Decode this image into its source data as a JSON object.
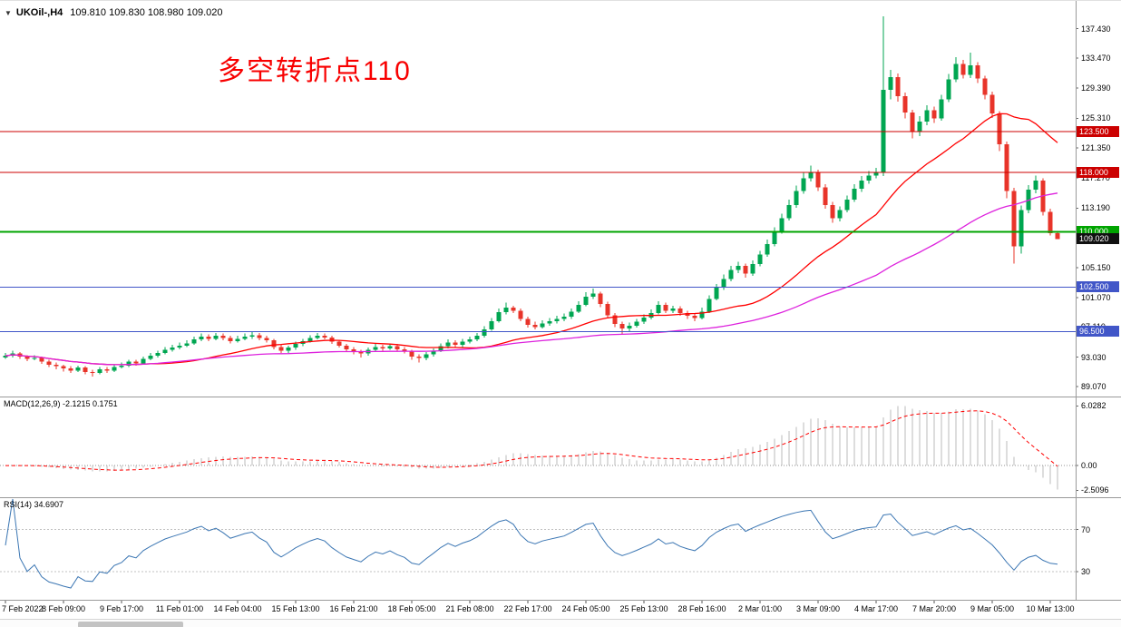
{
  "header": {
    "dropdown_icon": "▼",
    "symbol": "UKOil-,H4",
    "ohlc": "109.810 109.830 108.980 109.020"
  },
  "annotation": {
    "text": "多空转折点110",
    "color": "#F80000"
  },
  "chart_data": [
    {
      "type": "candlestick",
      "title": "UKOil- H4 candlestick chart",
      "symbol": "UKOil-",
      "timeframe": "H4",
      "ohlc_current": {
        "open": 109.81,
        "high": 109.83,
        "low": 108.98,
        "close": 109.02
      },
      "ylim": [
        87.7,
        141.2
      ],
      "grid": false,
      "up_color": "#00A651",
      "down_color": "#E8342A",
      "y_tick_labels": [
        "137.430",
        "133.470",
        "129.390",
        "125.310",
        "121.350",
        "117.270",
        "113.190",
        "109.110",
        "105.150",
        "101.070",
        "97.110",
        "93.030",
        "89.070"
      ],
      "x_labels": [
        "7 Feb 2022",
        "8 Feb 09:00",
        "9 Feb 17:00",
        "11 Feb 01:00",
        "14 Feb 04:00",
        "15 Feb 13:00",
        "16 Feb 21:00",
        "18 Feb 05:00",
        "21 Feb 08:00",
        "22 Feb 17:00",
        "24 Feb 05:00",
        "25 Feb 13:00",
        "28 Feb 16:00",
        "2 Mar 01:00",
        "3 Mar 09:00",
        "4 Mar 17:00",
        "7 Mar 20:00",
        "9 Mar 05:00",
        "10 Mar 13:00"
      ],
      "moving_averages": [
        {
          "name": "MA-red",
          "period": 21,
          "color": "#FF0000"
        },
        {
          "name": "MA-magenta",
          "period": 55,
          "color": "#DD22DD"
        }
      ],
      "levels": [
        {
          "price": 123.5,
          "label": "123.500",
          "color": "#CC0000",
          "width": 1
        },
        {
          "price": 118.0,
          "label": "118.000",
          "color": "#CC0000",
          "width": 1
        },
        {
          "price": 110.0,
          "label": "110.000",
          "color": "#00A400",
          "width": 2
        },
        {
          "price": 102.5,
          "label": "102.500",
          "color": "#4156C8",
          "width": 1
        },
        {
          "price": 96.5,
          "label": "96.500",
          "color": "#4156C8",
          "width": 1
        }
      ],
      "current_price": {
        "value": 109.02,
        "label": "109.020",
        "badge_color": "#111111"
      },
      "candles": [
        [
          93.0,
          93.6,
          92.8,
          93.2
        ],
        [
          93.2,
          93.9,
          93.0,
          93.5
        ],
        [
          93.5,
          93.7,
          92.8,
          93.1
        ],
        [
          93.1,
          93.3,
          92.5,
          92.8
        ],
        [
          92.8,
          93.3,
          92.6,
          92.9
        ],
        [
          92.9,
          93.1,
          92.1,
          92.4
        ],
        [
          92.4,
          92.7,
          91.7,
          92.0
        ],
        [
          92.0,
          92.3,
          91.4,
          91.8
        ],
        [
          91.8,
          92.0,
          91.1,
          91.5
        ],
        [
          91.5,
          91.8,
          90.9,
          91.2
        ],
        [
          91.2,
          91.9,
          91.0,
          91.6
        ],
        [
          91.6,
          91.8,
          90.7,
          91.0
        ],
        [
          91.0,
          91.3,
          90.4,
          90.9
        ],
        [
          90.9,
          91.7,
          90.7,
          91.4
        ],
        [
          91.4,
          91.7,
          90.9,
          91.2
        ],
        [
          91.2,
          92.0,
          91.0,
          91.7
        ],
        [
          91.7,
          92.3,
          91.5,
          91.9
        ],
        [
          91.9,
          92.7,
          91.7,
          92.4
        ],
        [
          92.4,
          92.7,
          91.9,
          92.2
        ],
        [
          92.2,
          93.1,
          92.0,
          92.8
        ],
        [
          92.8,
          93.6,
          92.6,
          93.2
        ],
        [
          93.2,
          93.9,
          93.0,
          93.6
        ],
        [
          93.6,
          94.4,
          93.4,
          94.0
        ],
        [
          94.0,
          94.7,
          93.8,
          94.3
        ],
        [
          94.3,
          95.0,
          94.1,
          94.6
        ],
        [
          94.6,
          95.3,
          94.4,
          94.9
        ],
        [
          94.9,
          95.8,
          94.7,
          95.4
        ],
        [
          95.4,
          96.2,
          95.2,
          95.8
        ],
        [
          95.8,
          96.1,
          95.2,
          95.5
        ],
        [
          95.5,
          96.3,
          95.3,
          95.9
        ],
        [
          95.9,
          96.2,
          95.3,
          95.6
        ],
        [
          95.6,
          95.9,
          94.9,
          95.2
        ],
        [
          95.2,
          95.9,
          95.0,
          95.5
        ],
        [
          95.5,
          96.2,
          95.3,
          95.8
        ],
        [
          95.8,
          96.4,
          95.5,
          96.0
        ],
        [
          96.0,
          96.3,
          95.3,
          95.6
        ],
        [
          95.6,
          95.9,
          95.0,
          95.3
        ],
        [
          95.3,
          95.5,
          94.1,
          94.4
        ],
        [
          94.4,
          94.7,
          93.6,
          93.9
        ],
        [
          93.9,
          94.6,
          93.6,
          94.3
        ],
        [
          94.3,
          95.1,
          94.0,
          94.8
        ],
        [
          94.8,
          95.5,
          94.5,
          95.2
        ],
        [
          95.2,
          96.0,
          95.0,
          95.6
        ],
        [
          95.6,
          96.3,
          95.4,
          95.9
        ],
        [
          95.9,
          96.2,
          95.4,
          95.7
        ],
        [
          95.7,
          95.9,
          94.8,
          95.1
        ],
        [
          95.1,
          95.3,
          94.3,
          94.6
        ],
        [
          94.6,
          94.8,
          93.8,
          94.1
        ],
        [
          94.1,
          94.4,
          93.4,
          93.8
        ],
        [
          93.8,
          94.0,
          93.0,
          93.5
        ],
        [
          93.5,
          94.3,
          93.2,
          94.0
        ],
        [
          94.0,
          94.8,
          93.8,
          94.4
        ],
        [
          94.4,
          94.7,
          93.9,
          94.2
        ],
        [
          94.2,
          94.9,
          94.0,
          94.5
        ],
        [
          94.5,
          94.8,
          93.8,
          94.1
        ],
        [
          94.1,
          94.4,
          93.5,
          93.8
        ],
        [
          93.8,
          94.0,
          92.7,
          93.1
        ],
        [
          93.1,
          93.4,
          92.3,
          92.9
        ],
        [
          92.9,
          93.7,
          92.6,
          93.4
        ],
        [
          93.4,
          94.2,
          93.1,
          93.9
        ],
        [
          93.9,
          94.9,
          93.7,
          94.5
        ],
        [
          94.5,
          95.4,
          94.2,
          95.0
        ],
        [
          95.0,
          95.3,
          94.4,
          94.7
        ],
        [
          94.7,
          95.5,
          94.4,
          95.1
        ],
        [
          95.1,
          95.8,
          94.9,
          95.4
        ],
        [
          95.4,
          96.3,
          95.2,
          95.9
        ],
        [
          95.9,
          97.2,
          95.7,
          96.8
        ],
        [
          96.8,
          98.3,
          96.6,
          97.9
        ],
        [
          97.9,
          99.6,
          97.7,
          99.1
        ],
        [
          99.1,
          100.4,
          98.8,
          99.7
        ],
        [
          99.7,
          100.0,
          99.0,
          99.3
        ],
        [
          99.3,
          99.6,
          97.9,
          98.2
        ],
        [
          98.2,
          98.5,
          97.0,
          97.4
        ],
        [
          97.4,
          97.8,
          96.8,
          97.1
        ],
        [
          97.1,
          98.0,
          96.9,
          97.6
        ],
        [
          97.6,
          98.3,
          97.3,
          97.9
        ],
        [
          97.9,
          98.6,
          97.6,
          98.2
        ],
        [
          98.2,
          98.9,
          97.9,
          98.5
        ],
        [
          98.5,
          99.6,
          98.2,
          99.2
        ],
        [
          99.2,
          100.6,
          99.0,
          100.1
        ],
        [
          100.1,
          101.8,
          99.9,
          101.2
        ],
        [
          101.2,
          102.3,
          100.9,
          101.6
        ],
        [
          101.6,
          101.9,
          99.8,
          100.2
        ],
        [
          100.2,
          100.5,
          98.3,
          98.7
        ],
        [
          98.7,
          99.0,
          97.1,
          97.5
        ],
        [
          97.5,
          97.8,
          96.1,
          96.9
        ],
        [
          96.9,
          97.7,
          96.5,
          97.3
        ],
        [
          97.3,
          98.2,
          97.0,
          97.8
        ],
        [
          97.8,
          98.8,
          97.5,
          98.4
        ],
        [
          98.4,
          99.5,
          98.1,
          99.0
        ],
        [
          99.0,
          100.6,
          98.8,
          100.1
        ],
        [
          100.1,
          100.4,
          99.0,
          99.3
        ],
        [
          99.3,
          100.0,
          99.0,
          99.6
        ],
        [
          99.6,
          99.9,
          98.6,
          99.0
        ],
        [
          99.0,
          99.3,
          98.2,
          98.6
        ],
        [
          98.6,
          98.9,
          97.9,
          98.3
        ],
        [
          98.3,
          99.7,
          98.1,
          99.2
        ],
        [
          99.2,
          101.4,
          99.0,
          100.9
        ],
        [
          100.9,
          102.9,
          100.7,
          102.4
        ],
        [
          102.4,
          104.2,
          102.1,
          103.6
        ],
        [
          103.6,
          105.4,
          103.3,
          104.8
        ],
        [
          104.8,
          105.9,
          104.4,
          105.4
        ],
        [
          105.4,
          105.7,
          103.8,
          104.3
        ],
        [
          104.3,
          106.1,
          104.0,
          105.6
        ],
        [
          105.6,
          107.4,
          105.3,
          106.9
        ],
        [
          106.9,
          108.9,
          106.6,
          108.3
        ],
        [
          108.3,
          110.6,
          108.0,
          110.0
        ],
        [
          110.0,
          112.4,
          109.7,
          111.8
        ],
        [
          111.8,
          114.3,
          111.5,
          113.6
        ],
        [
          113.6,
          116.2,
          113.2,
          115.5
        ],
        [
          115.5,
          118.0,
          115.1,
          117.2
        ],
        [
          117.2,
          118.9,
          116.8,
          118.1
        ],
        [
          118.1,
          118.4,
          115.5,
          116.0
        ],
        [
          116.0,
          116.4,
          113.1,
          113.6
        ],
        [
          113.6,
          114.0,
          111.2,
          111.8
        ],
        [
          111.8,
          113.4,
          111.4,
          112.9
        ],
        [
          112.9,
          114.9,
          112.6,
          114.3
        ],
        [
          114.3,
          116.4,
          114.0,
          115.8
        ],
        [
          115.8,
          117.5,
          115.4,
          116.9
        ],
        [
          116.9,
          118.2,
          116.5,
          117.6
        ],
        [
          117.6,
          118.6,
          117.2,
          118.0
        ],
        [
          118.0,
          139.13,
          117.5,
          129.2
        ],
        [
          129.2,
          131.9,
          127.9,
          130.9
        ],
        [
          130.9,
          131.4,
          127.6,
          128.3
        ],
        [
          128.3,
          128.8,
          125.3,
          126.1
        ],
        [
          126.1,
          126.5,
          122.6,
          123.5
        ],
        [
          123.5,
          125.6,
          122.9,
          124.9
        ],
        [
          124.9,
          127.1,
          124.4,
          126.4
        ],
        [
          126.4,
          126.9,
          124.7,
          125.3
        ],
        [
          125.3,
          128.5,
          125.0,
          127.9
        ],
        [
          127.9,
          131.3,
          127.5,
          130.6
        ],
        [
          130.6,
          133.6,
          130.2,
          132.7
        ],
        [
          132.7,
          133.2,
          130.7,
          131.2
        ],
        [
          131.2,
          134.2,
          130.8,
          132.5
        ],
        [
          132.5,
          132.9,
          130.1,
          130.7
        ],
        [
          130.7,
          131.1,
          127.9,
          128.5
        ],
        [
          128.5,
          128.9,
          125.4,
          126.0
        ],
        [
          126.0,
          126.3,
          120.9,
          121.8
        ],
        [
          121.8,
          122.2,
          114.5,
          115.5
        ],
        [
          115.5,
          115.9,
          105.69,
          108.0
        ],
        [
          108.0,
          113.5,
          107.0,
          112.9
        ],
        [
          112.9,
          116.3,
          112.5,
          115.7
        ],
        [
          115.7,
          117.6,
          115.2,
          116.9
        ],
        [
          116.9,
          117.2,
          112.2,
          112.7
        ],
        [
          112.7,
          113.1,
          109.5,
          109.81
        ],
        [
          109.81,
          109.83,
          108.98,
          109.02
        ]
      ]
    },
    {
      "type": "bar",
      "name": "MACD",
      "label": "MACD(12,26,9)",
      "display": "MACD(12,26,9) -2.1215 0.1751",
      "params": [
        12,
        26,
        9
      ],
      "current_macd": -2.1215,
      "current_signal": 0.1751,
      "ylim": [
        -3.2,
        6.9
      ],
      "y_tick_labels": [
        "6.0282",
        "0.00",
        "-2.5096"
      ],
      "histogram_color": "#BBBBBB",
      "signal_color": "#FF0000",
      "legend_position": "top-left"
    },
    {
      "type": "line",
      "name": "RSI",
      "label": "RSI(14)",
      "display": "RSI(14) 34.6907",
      "period": 14,
      "current": 34.6907,
      "levels": [
        70,
        30
      ],
      "level_labels": [
        "70",
        "30"
      ],
      "ylim": [
        3,
        100
      ],
      "color": "#3B76B3",
      "legend_position": "top-left"
    }
  ]
}
